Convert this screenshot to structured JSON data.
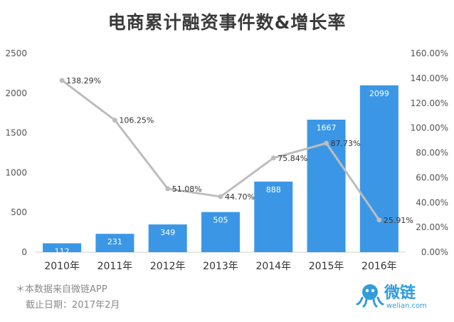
{
  "chart_data": {
    "type": "bar",
    "title": "电商累计融资事件数&增长率",
    "categories": [
      "2010年",
      "2011年",
      "2012年",
      "2013年",
      "2014年",
      "2015年",
      "2016年"
    ],
    "series": [
      {
        "values": [
          112,
          231,
          349,
          505,
          888,
          1667,
          2099
        ],
        "labels": [
          "112",
          "231",
          "349",
          "505",
          "888",
          "1667",
          "2099"
        ],
        "color": "#3b97e6",
        "axis": "left",
        "kind": "bar"
      },
      {
        "values": [
          138.29,
          106.25,
          51.08,
          44.7,
          75.84,
          87.73,
          25.91
        ],
        "labels": [
          "138.29%",
          "106.25%",
          "51.08%",
          "44.70%",
          "75.84%",
          "87.73%",
          "25.91%"
        ],
        "color": "#bdbdbd",
        "axis": "right",
        "kind": "line"
      }
    ],
    "ylim_left": [
      0,
      2500
    ],
    "yticks_left": [
      "0",
      "500",
      "1000",
      "1500",
      "2000",
      "2500"
    ],
    "ylim_right": [
      0,
      160
    ],
    "yticks_right": [
      "0.00%",
      "20.00%",
      "40.00%",
      "60.00%",
      "80.00%",
      "100.00%",
      "120.00%",
      "140.00%",
      "160.00%"
    ],
    "grid": false,
    "legend": "none"
  },
  "footnote": {
    "line1": "＊本数据来自微链APP",
    "line2": "截止日期：2017年2月"
  },
  "brand": {
    "name": "微链",
    "url": "welian.com"
  },
  "colors": {
    "bar": "#3b97e6",
    "line": "#bdbdbd",
    "brand": "#2f9cde"
  }
}
